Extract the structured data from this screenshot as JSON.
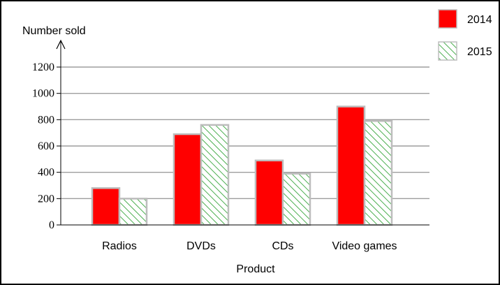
{
  "chart_data": {
    "type": "bar",
    "categories": [
      "Radios",
      "DVDs",
      "CDs",
      "Video games"
    ],
    "series": [
      {
        "name": "2014",
        "values": [
          280,
          690,
          490,
          900
        ],
        "color": "#ff0000",
        "pattern": "solid"
      },
      {
        "name": "2015",
        "values": [
          200,
          760,
          390,
          790
        ],
        "color": "#4caf50",
        "pattern": "diagonal-hatch"
      }
    ],
    "xlabel": "Product",
    "ylabel": "Number sold",
    "ylim": [
      0,
      1200
    ],
    "yticks": [
      "0",
      "200",
      "400",
      "600",
      "800",
      "1000",
      "1200"
    ],
    "grid": true,
    "legend": "top-right"
  }
}
